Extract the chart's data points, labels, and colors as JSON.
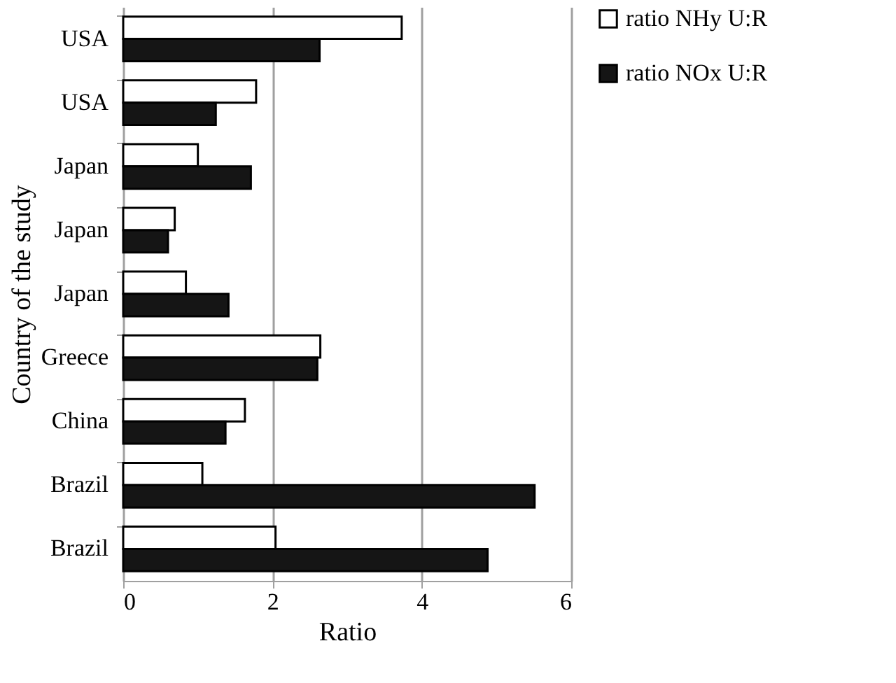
{
  "chart_data": {
    "type": "bar",
    "orientation": "horizontal",
    "xlabel": "Ratio",
    "ylabel": "Country of the study",
    "categories": [
      "USA",
      "USA",
      "Japan",
      "Japan",
      "Japan",
      "Greece",
      "China",
      "Brazil",
      "Brazil"
    ],
    "series": [
      {
        "name": "ratio NHy U:R",
        "color": "#ffffff",
        "values": [
          3.73,
          1.78,
          1.0,
          0.69,
          0.84,
          2.64,
          1.63,
          1.06,
          2.04
        ]
      },
      {
        "name": "ratio NOx U:R",
        "color": "#151515",
        "values": [
          2.63,
          1.24,
          1.71,
          0.6,
          1.41,
          2.6,
          1.37,
          5.51,
          4.88
        ]
      }
    ],
    "xlim": [
      0,
      6
    ],
    "xticks": [
      0,
      2,
      4,
      6
    ],
    "grid": "x",
    "legend": "right"
  }
}
